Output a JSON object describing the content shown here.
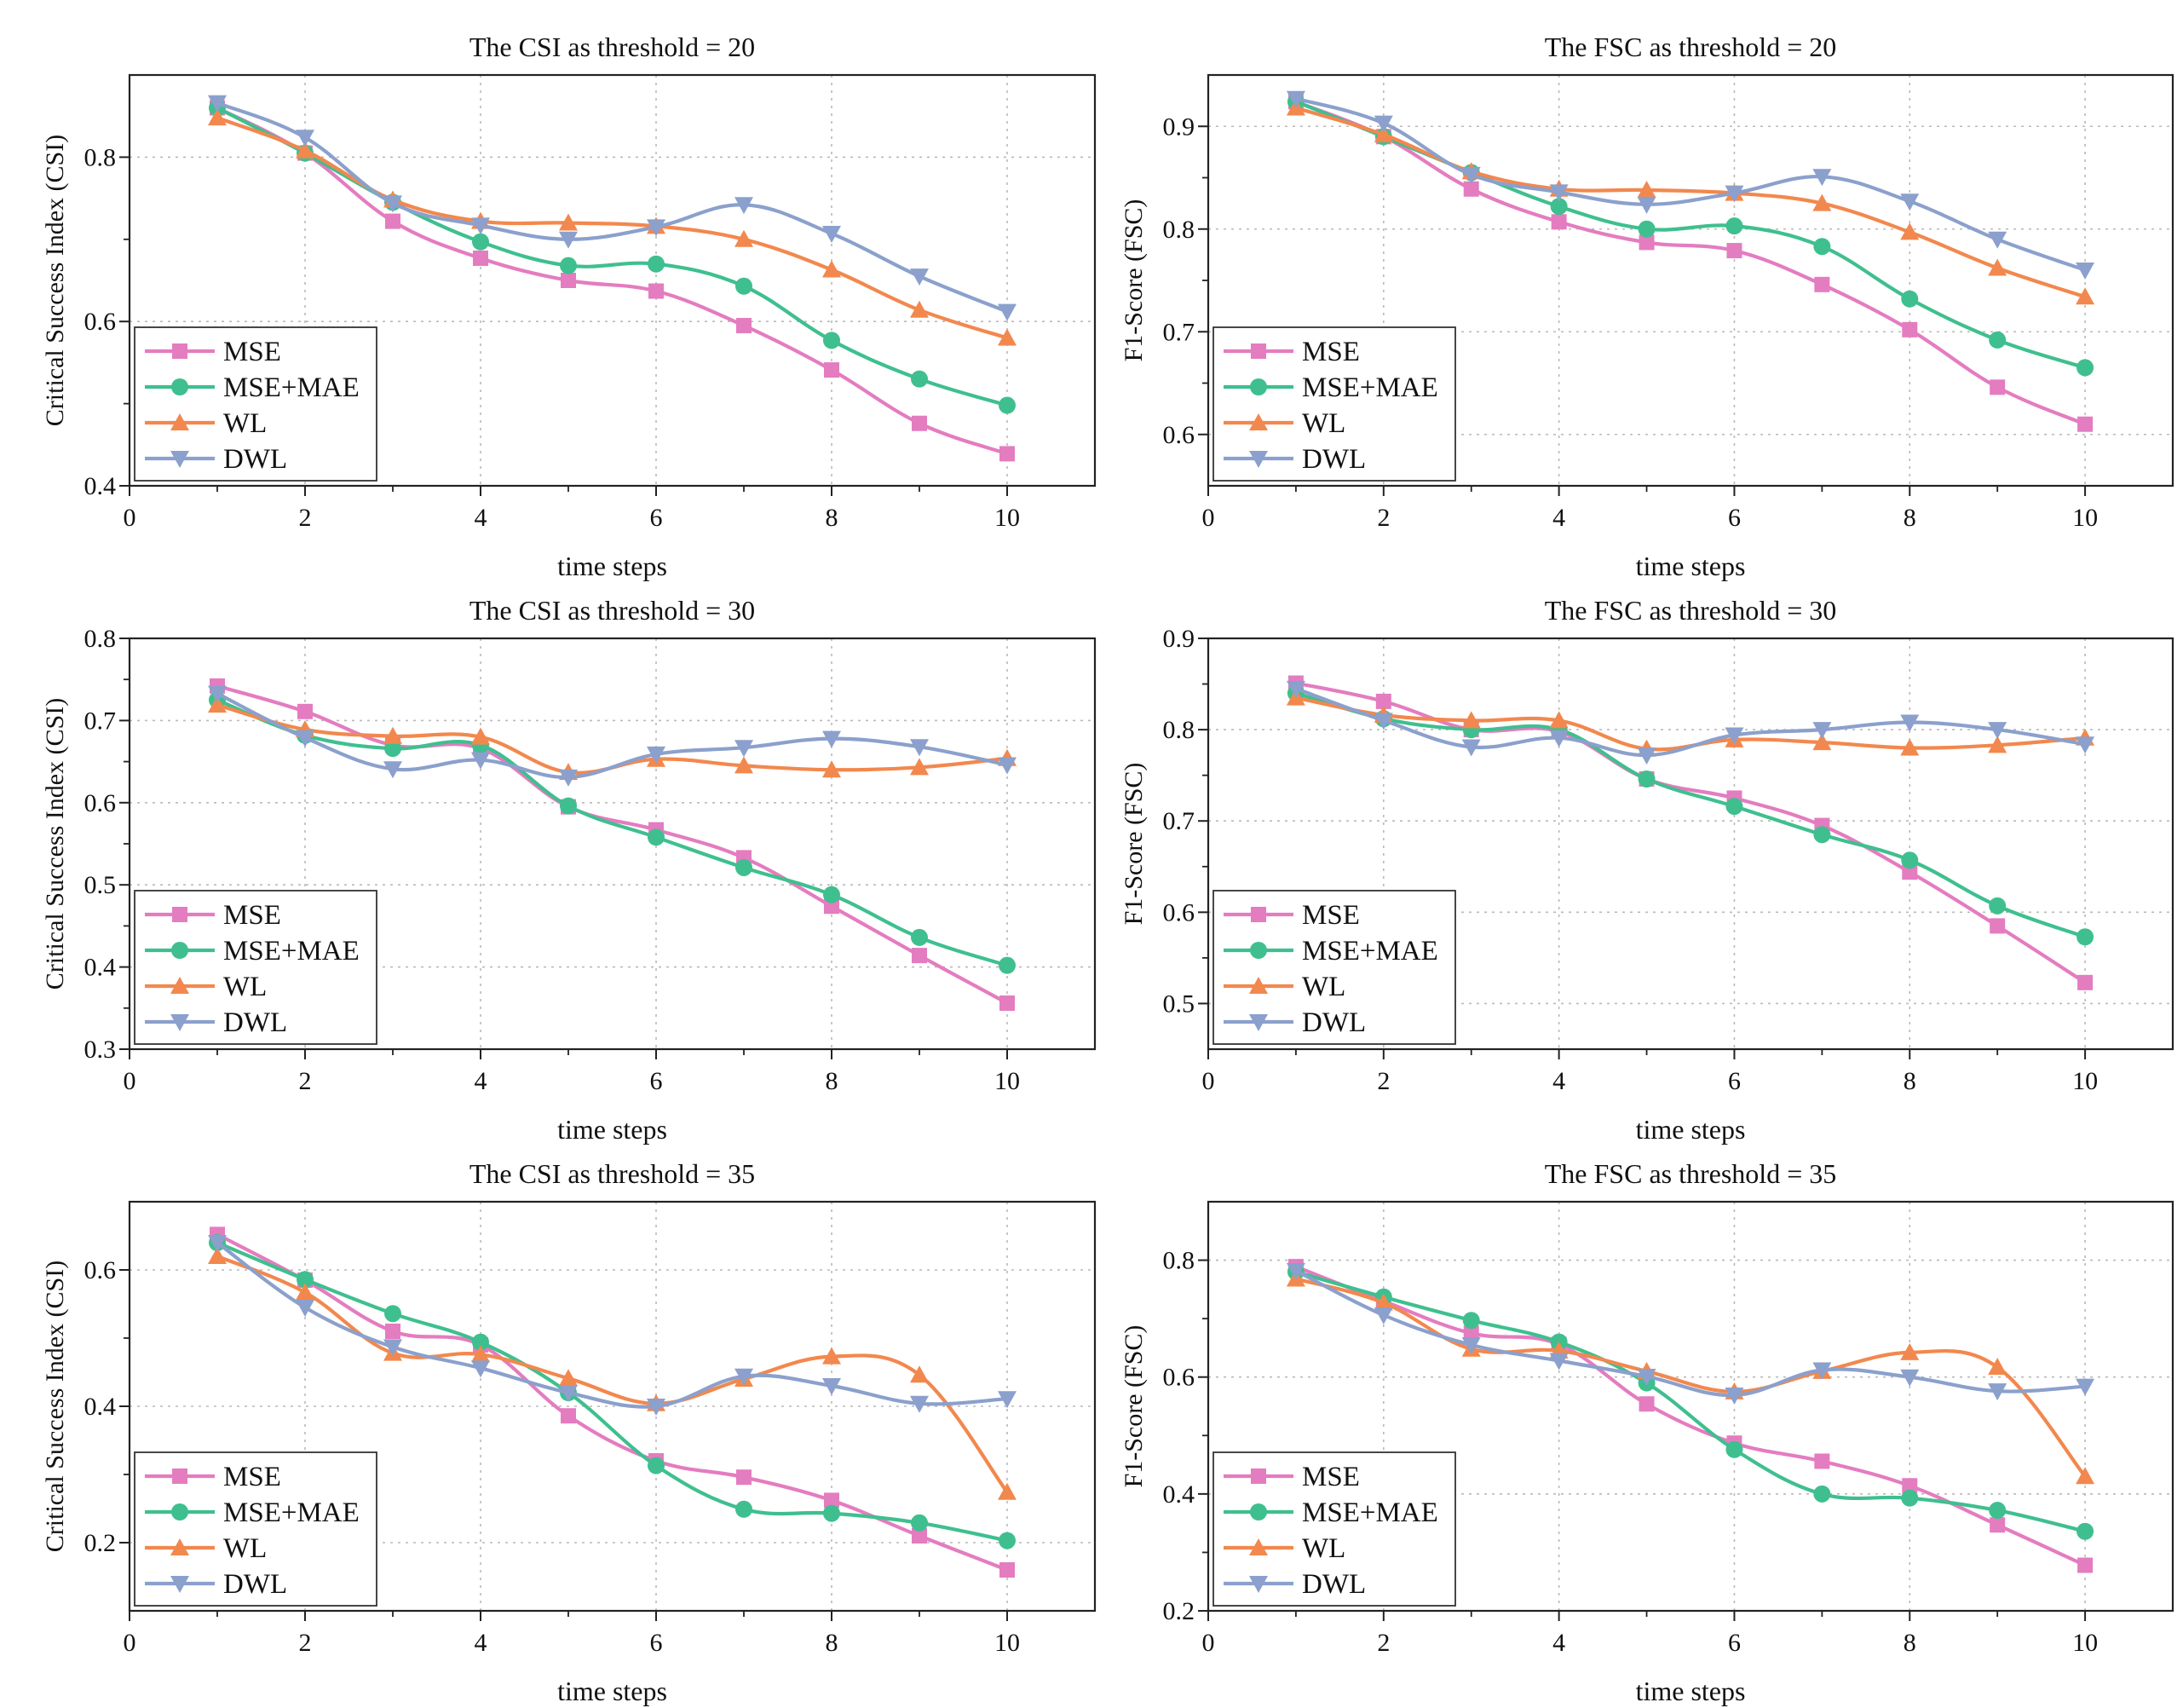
{
  "colors": {
    "MSE": "#e47cc0",
    "MSE+MAE": "#3fbf8f",
    "WL": "#f2884e",
    "DWL": "#8ba0cc"
  },
  "chart_data": [
    {
      "type": "line",
      "title": "The CSI as threshold = 20",
      "xlabel": "time steps",
      "ylabel": "Critical Success Index (CSI)",
      "xlim": [
        0,
        11
      ],
      "ylim": [
        0.4,
        0.9
      ],
      "xticks": [
        0,
        2,
        4,
        6,
        8,
        10
      ],
      "yticks": [
        0.4,
        0.6,
        0.8
      ],
      "legend": "bottom-left",
      "x": [
        1,
        2,
        3,
        4,
        5,
        6,
        7,
        8,
        9,
        10
      ],
      "series": [
        {
          "name": "MSE",
          "marker": "square",
          "values": [
            0.86,
            0.805,
            0.722,
            0.677,
            0.65,
            0.637,
            0.595,
            0.541,
            0.476,
            0.439
          ]
        },
        {
          "name": "MSE+MAE",
          "marker": "circle",
          "values": [
            0.86,
            0.805,
            0.745,
            0.697,
            0.668,
            0.67,
            0.643,
            0.577,
            0.53,
            0.498
          ]
        },
        {
          "name": "WL",
          "marker": "triangle-up",
          "values": [
            0.848,
            0.808,
            0.748,
            0.722,
            0.72,
            0.716,
            0.7,
            0.663,
            0.614,
            0.58
          ]
        },
        {
          "name": "DWL",
          "marker": "triangle-down",
          "values": [
            0.866,
            0.824,
            0.744,
            0.717,
            0.7,
            0.715,
            0.742,
            0.707,
            0.655,
            0.612
          ]
        }
      ]
    },
    {
      "type": "line",
      "title": "The FSC as threshold = 20",
      "xlabel": "time steps",
      "ylabel": "F1-Score (FSC)",
      "xlim": [
        0,
        11
      ],
      "ylim": [
        0.55,
        0.95
      ],
      "xticks": [
        0,
        2,
        4,
        6,
        8,
        10
      ],
      "yticks": [
        0.6,
        0.7,
        0.8,
        0.9
      ],
      "legend": "bottom-left",
      "x": [
        1,
        2,
        3,
        4,
        5,
        6,
        7,
        8,
        9,
        10
      ],
      "series": [
        {
          "name": "MSE",
          "marker": "square",
          "values": [
            0.924,
            0.89,
            0.839,
            0.807,
            0.787,
            0.779,
            0.746,
            0.702,
            0.646,
            0.61
          ]
        },
        {
          "name": "MSE+MAE",
          "marker": "circle",
          "values": [
            0.924,
            0.89,
            0.855,
            0.822,
            0.8,
            0.803,
            0.783,
            0.732,
            0.692,
            0.665
          ]
        },
        {
          "name": "WL",
          "marker": "triangle-up",
          "values": [
            0.918,
            0.892,
            0.856,
            0.839,
            0.838,
            0.835,
            0.825,
            0.797,
            0.762,
            0.734
          ]
        },
        {
          "name": "DWL",
          "marker": "triangle-down",
          "values": [
            0.927,
            0.903,
            0.853,
            0.836,
            0.824,
            0.835,
            0.851,
            0.827,
            0.79,
            0.76
          ]
        }
      ]
    },
    {
      "type": "line",
      "title": "The CSI as threshold = 30",
      "xlabel": "time steps",
      "ylabel": "Critical Success Index (CSI)",
      "xlim": [
        0,
        11
      ],
      "ylim": [
        0.3,
        0.8
      ],
      "xticks": [
        0,
        2,
        4,
        6,
        8,
        10
      ],
      "yticks": [
        0.3,
        0.4,
        0.5,
        0.6,
        0.7,
        0.8
      ],
      "legend": "bottom-left",
      "x": [
        1,
        2,
        3,
        4,
        5,
        6,
        7,
        8,
        9,
        10
      ],
      "series": [
        {
          "name": "MSE",
          "marker": "square",
          "values": [
            0.742,
            0.711,
            0.67,
            0.666,
            0.595,
            0.567,
            0.533,
            0.474,
            0.414,
            0.356
          ]
        },
        {
          "name": "MSE+MAE",
          "marker": "circle",
          "values": [
            0.725,
            0.682,
            0.666,
            0.67,
            0.596,
            0.558,
            0.521,
            0.488,
            0.436,
            0.402
          ]
        },
        {
          "name": "WL",
          "marker": "triangle-up",
          "values": [
            0.719,
            0.689,
            0.681,
            0.68,
            0.637,
            0.653,
            0.645,
            0.64,
            0.643,
            0.654
          ]
        },
        {
          "name": "DWL",
          "marker": "triangle-down",
          "values": [
            0.733,
            0.679,
            0.641,
            0.652,
            0.631,
            0.659,
            0.667,
            0.678,
            0.668,
            0.646
          ]
        }
      ]
    },
    {
      "type": "line",
      "title": "The FSC as threshold = 30",
      "xlabel": "time steps",
      "ylabel": "F1-Score (FSC)",
      "xlim": [
        0,
        11
      ],
      "ylim": [
        0.45,
        0.9
      ],
      "xticks": [
        0,
        2,
        4,
        6,
        8,
        10
      ],
      "yticks": [
        0.5,
        0.6,
        0.7,
        0.8,
        0.9
      ],
      "legend": "bottom-left",
      "x": [
        1,
        2,
        3,
        4,
        5,
        6,
        7,
        8,
        9,
        10
      ],
      "series": [
        {
          "name": "MSE",
          "marker": "square",
          "values": [
            0.851,
            0.831,
            0.8,
            0.798,
            0.746,
            0.725,
            0.695,
            0.644,
            0.585,
            0.523
          ]
        },
        {
          "name": "MSE+MAE",
          "marker": "circle",
          "values": [
            0.84,
            0.812,
            0.8,
            0.8,
            0.746,
            0.716,
            0.685,
            0.657,
            0.607,
            0.573
          ]
        },
        {
          "name": "WL",
          "marker": "triangle-up",
          "values": [
            0.835,
            0.816,
            0.81,
            0.81,
            0.779,
            0.789,
            0.786,
            0.78,
            0.783,
            0.791
          ]
        },
        {
          "name": "DWL",
          "marker": "triangle-down",
          "values": [
            0.845,
            0.81,
            0.781,
            0.791,
            0.772,
            0.794,
            0.8,
            0.808,
            0.8,
            0.784
          ]
        }
      ]
    },
    {
      "type": "line",
      "title": "The CSI as threshold = 35",
      "xlabel": "time steps",
      "ylabel": "Critical Success Index (CSI)",
      "xlim": [
        0,
        11
      ],
      "ylim": [
        0.1,
        0.7
      ],
      "xticks": [
        0,
        2,
        4,
        6,
        8,
        10
      ],
      "yticks": [
        0.2,
        0.4,
        0.6
      ],
      "legend": "bottom-left",
      "x": [
        1,
        2,
        3,
        4,
        5,
        6,
        7,
        8,
        9,
        10
      ],
      "series": [
        {
          "name": "MSE",
          "marker": "square",
          "values": [
            0.652,
            0.585,
            0.51,
            0.49,
            0.386,
            0.32,
            0.296,
            0.262,
            0.21,
            0.16
          ]
        },
        {
          "name": "MSE+MAE",
          "marker": "circle",
          "values": [
            0.64,
            0.586,
            0.536,
            0.494,
            0.42,
            0.313,
            0.249,
            0.243,
            0.229,
            0.203
          ]
        },
        {
          "name": "WL",
          "marker": "triangle-up",
          "values": [
            0.62,
            0.567,
            0.478,
            0.476,
            0.441,
            0.404,
            0.44,
            0.473,
            0.446,
            0.274
          ]
        },
        {
          "name": "DWL",
          "marker": "triangle-down",
          "values": [
            0.64,
            0.545,
            0.487,
            0.456,
            0.42,
            0.4,
            0.444,
            0.43,
            0.404,
            0.411
          ]
        }
      ]
    },
    {
      "type": "line",
      "title": "The FSC as threshold = 35",
      "xlabel": "time steps",
      "ylabel": "F1-Score (FSC)",
      "xlim": [
        0,
        11
      ],
      "ylim": [
        0.2,
        0.9
      ],
      "xticks": [
        0,
        2,
        4,
        6,
        8,
        10
      ],
      "yticks": [
        0.2,
        0.4,
        0.6,
        0.8
      ],
      "legend": "bottom-left",
      "x": [
        1,
        2,
        3,
        4,
        5,
        6,
        7,
        8,
        9,
        10
      ],
      "series": [
        {
          "name": "MSE",
          "marker": "square",
          "values": [
            0.789,
            0.73,
            0.675,
            0.656,
            0.554,
            0.487,
            0.456,
            0.414,
            0.347,
            0.278
          ]
        },
        {
          "name": "MSE+MAE",
          "marker": "circle",
          "values": [
            0.78,
            0.737,
            0.697,
            0.66,
            0.59,
            0.476,
            0.4,
            0.393,
            0.372,
            0.336
          ]
        },
        {
          "name": "WL",
          "marker": "triangle-up",
          "values": [
            0.768,
            0.727,
            0.648,
            0.645,
            0.61,
            0.575,
            0.61,
            0.642,
            0.617,
            0.43
          ]
        },
        {
          "name": "DWL",
          "marker": "triangle-down",
          "values": [
            0.782,
            0.706,
            0.655,
            0.628,
            0.601,
            0.569,
            0.612,
            0.6,
            0.576,
            0.584
          ]
        }
      ]
    }
  ]
}
